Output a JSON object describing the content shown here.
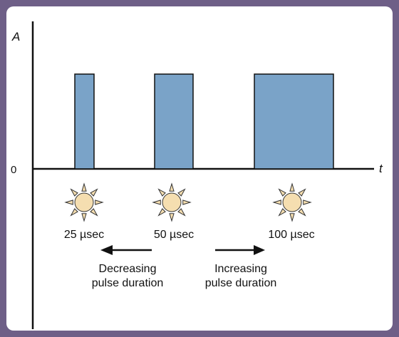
{
  "axes": {
    "y_label": "A",
    "x_label": "t",
    "origin_label": "0"
  },
  "pulses": [
    {
      "duration_label": "25 µsec",
      "duration_us": 25
    },
    {
      "duration_label": "50 µsec",
      "duration_us": 50
    },
    {
      "duration_label": "100 µsec",
      "duration_us": 100
    }
  ],
  "annotations": {
    "decreasing_line1": "Decreasing",
    "decreasing_line2": "pulse duration",
    "increasing_line1": "Increasing",
    "increasing_line2": "pulse duration"
  },
  "colors": {
    "border": "#6e5f87",
    "pulse_fill": "#7aa3c8",
    "sun_fill": "#f5deb0",
    "sun_stroke": "#333333",
    "axis": "#111111"
  }
}
